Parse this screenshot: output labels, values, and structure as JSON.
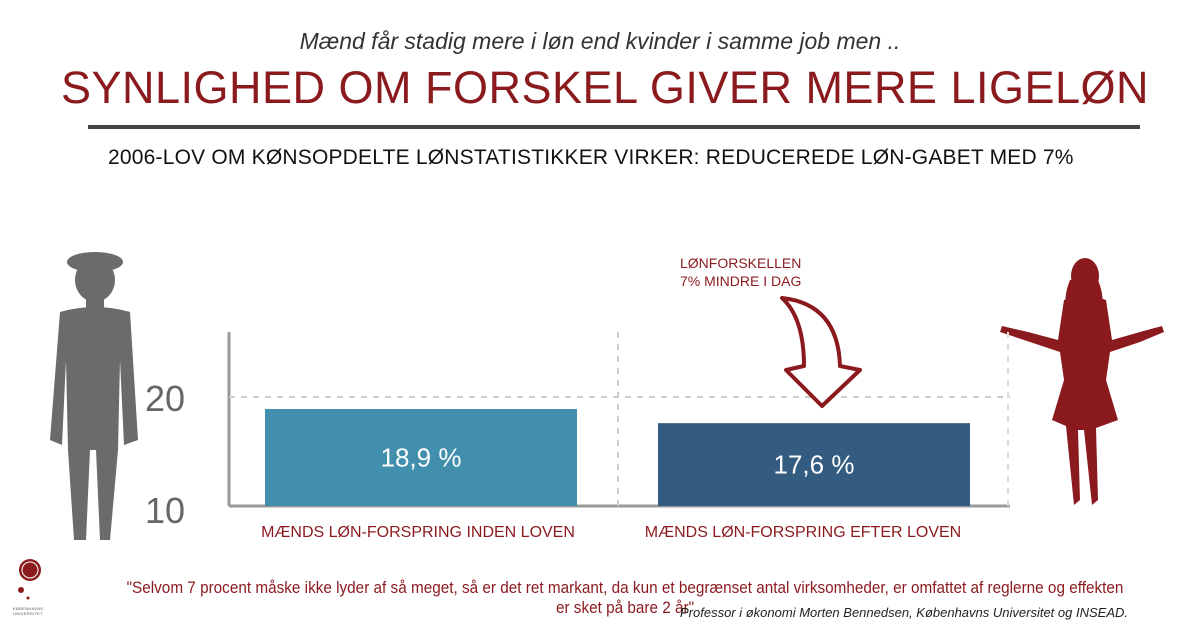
{
  "header": {
    "subtitle": "Mænd får stadig mere i løn end kvinder i samme job men ..",
    "title": "SYNLIGHED OM FORSKEL GIVER MERE LIGELØN",
    "headline": "2006-LOV OM KØNSOPDELTE LØNSTATISTIKKER VIRKER:  REDUCEREDE LØN-GABET MED 7%"
  },
  "annotation": {
    "line1": "LØNFORSKELLEN",
    "line2": "7% MINDRE I DAG"
  },
  "chart_data": {
    "type": "bar",
    "categories": [
      "MÆNDS LØN-FORSPRING INDEN LOVEN",
      "MÆNDS LØN-FORSPRING EFTER LOVEN"
    ],
    "values": [
      18.9,
      17.6
    ],
    "value_labels": [
      "18,9 %",
      "17,6 %"
    ],
    "yticks": [
      10,
      20
    ],
    "ylim": [
      10,
      25
    ],
    "grid": "dashed at 20",
    "colors": [
      "#428ead",
      "#345b80"
    ]
  },
  "footer": {
    "quote": "\"Selvom 7 procent måske ikke lyder af så meget, så er det ret markant, da kun et begrænset antal virksomheder, er omfattet af reglerne og effekten er sket på bare 2 år\"",
    "attribution": "Professor i økonomi Morten Bennedsen, Københavns Universitet  og INSEAD.",
    "logo_text": "KØBENHAVNS UNIVERSITET"
  },
  "colors": {
    "accent": "#8b1a1f",
    "male_figure": "#6b6b6b",
    "female_figure": "#8b1a1f"
  }
}
